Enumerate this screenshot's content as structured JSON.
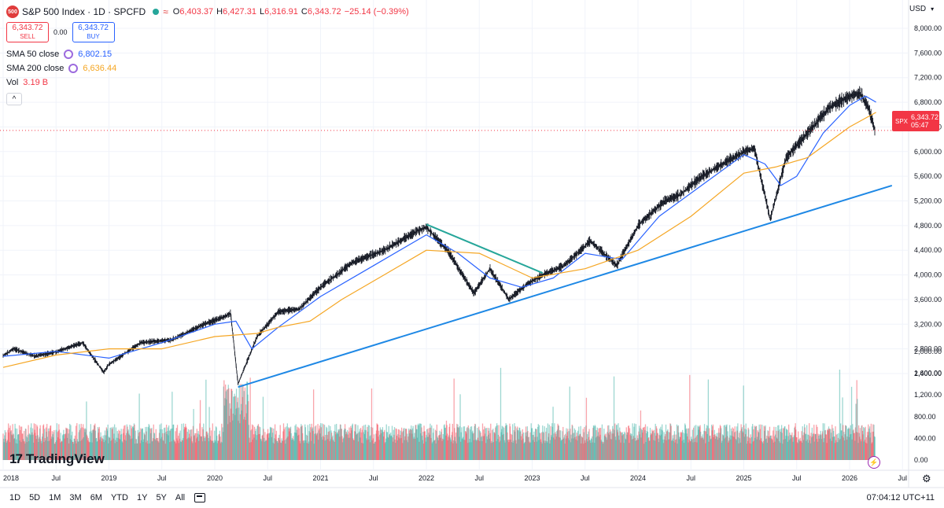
{
  "header": {
    "logo_text": "500",
    "symbol": "S&P 500 Index · 1D · SPCFD",
    "ohlc": [
      {
        "key": "O",
        "value": "6,403.37"
      },
      {
        "key": "H",
        "value": "6,427.31"
      },
      {
        "key": "L",
        "value": "6,316.91"
      },
      {
        "key": "C",
        "value": "6,343.72"
      }
    ],
    "change": "−25.14 (−0.39%)"
  },
  "trade": {
    "sell_price": "6,343.72",
    "sell_label": "SELL",
    "spread": "0.00",
    "buy_price": "6,343.72",
    "buy_label": "BUY"
  },
  "indicators": {
    "sma50_label": "SMA 50 close",
    "sma50_value": "6,802.15",
    "sma200_label": "SMA 200 close",
    "sma200_value": "6,636.44",
    "vol_label": "Vol",
    "vol_value": "3.19 B"
  },
  "axis": {
    "currency": "USD"
  },
  "price_tag": {
    "symbol": "SPX",
    "price": "6,343.72",
    "countdown": "05:47"
  },
  "branding": {
    "name": "TradingView"
  },
  "timeframes": [
    "1D",
    "5D",
    "1M",
    "3M",
    "6M",
    "YTD",
    "1Y",
    "5Y",
    "All"
  ],
  "clock": "07:04:12 UTC+11",
  "colors": {
    "up": "#26a69a",
    "down": "#f23645",
    "sma50": "#2962ff",
    "sma200": "#f5a623",
    "trend": "#1e88e5",
    "trend_top": "#26a69a"
  },
  "chart_data": {
    "type": "line",
    "title": "S&P 500 Index · 1D · SPCFD",
    "x_ticks": [
      "2018",
      "Jul",
      "2019",
      "Jul",
      "2020",
      "Jul",
      "2021",
      "Jul",
      "2022",
      "Jul",
      "2023",
      "Jul",
      "2024",
      "Jul",
      "2025",
      "Jul",
      "2026",
      "Jul"
    ],
    "y_ticks": [
      "8,000.00",
      "7,600.00",
      "7,200.00",
      "6,800.00",
      "6,400.00",
      "6,000.00",
      "5,600.00",
      "5,200.00",
      "4,800.00",
      "4,400.00",
      "4,000.00",
      "3,600.00",
      "3,200.00",
      "2,800.00",
      "2,400.00"
    ],
    "ylim": [
      2000,
      8150
    ],
    "volume_ticks": [
      "2,000.00",
      "1,600.00",
      "1,200.00",
      "800.00",
      "400.00",
      "0.00"
    ],
    "series": [
      {
        "name": "Price",
        "x": [
          2018.0,
          2018.1,
          2018.3,
          2018.5,
          2018.75,
          2018.95,
          2019.0,
          2019.3,
          2019.6,
          2019.9,
          2020.1,
          2020.15,
          2020.22,
          2020.4,
          2020.6,
          2020.8,
          2021.0,
          2021.3,
          2021.6,
          2021.9,
          2022.0,
          2022.2,
          2022.45,
          2022.6,
          2022.78,
          2022.95,
          2023.1,
          2023.3,
          2023.55,
          2023.8,
          2024.0,
          2024.25,
          2024.4,
          2024.6,
          2024.8,
          2025.0,
          2025.1,
          2025.25,
          2025.4,
          2025.6,
          2025.8,
          2026.0,
          2026.1,
          2026.18,
          2026.24
        ],
        "values": [
          2690,
          2800,
          2680,
          2750,
          2900,
          2420,
          2550,
          2900,
          2950,
          3200,
          3330,
          3380,
          2230,
          3000,
          3400,
          3450,
          3800,
          4200,
          4400,
          4700,
          4770,
          4400,
          3700,
          4100,
          3600,
          3850,
          4000,
          4150,
          4550,
          4150,
          4800,
          5200,
          5300,
          5600,
          5800,
          6000,
          6050,
          4900,
          5900,
          6300,
          6700,
          6900,
          6950,
          6700,
          6344
        ]
      },
      {
        "name": "SMA 50 close",
        "x": [
          2018.0,
          2018.5,
          2019.0,
          2019.5,
          2020.0,
          2020.2,
          2020.35,
          2020.6,
          2021.0,
          2021.5,
          2022.0,
          2022.3,
          2022.6,
          2022.9,
          2023.2,
          2023.5,
          2023.85,
          2024.2,
          2024.6,
          2025.0,
          2025.2,
          2025.35,
          2025.5,
          2025.75,
          2026.0,
          2026.15,
          2026.25
        ],
        "values": [
          2680,
          2760,
          2650,
          2900,
          3200,
          3250,
          2800,
          3150,
          3650,
          4150,
          4650,
          4350,
          3950,
          3800,
          3950,
          4350,
          4250,
          4950,
          5450,
          5950,
          5800,
          5450,
          5600,
          6300,
          6750,
          6900,
          6802
        ]
      },
      {
        "name": "SMA 200 close",
        "x": [
          2018.0,
          2018.5,
          2019.0,
          2019.5,
          2020.0,
          2020.4,
          2020.6,
          2020.9,
          2021.2,
          2021.6,
          2022.0,
          2022.5,
          2023.0,
          2023.5,
          2024.0,
          2024.5,
          2025.0,
          2025.3,
          2025.6,
          2026.0,
          2026.25
        ],
        "values": [
          2500,
          2700,
          2800,
          2800,
          3000,
          3050,
          3150,
          3250,
          3600,
          4000,
          4400,
          4350,
          3950,
          4100,
          4400,
          4950,
          5650,
          5750,
          5900,
          6400,
          6636
        ]
      },
      {
        "name": "Support trendline",
        "x": [
          2020.22,
          2026.4
        ],
        "values": [
          2180,
          5450
        ]
      },
      {
        "name": "Resistance trendline",
        "x": [
          2022.0,
          2023.1
        ],
        "values": [
          4820,
          4030
        ]
      }
    ]
  }
}
